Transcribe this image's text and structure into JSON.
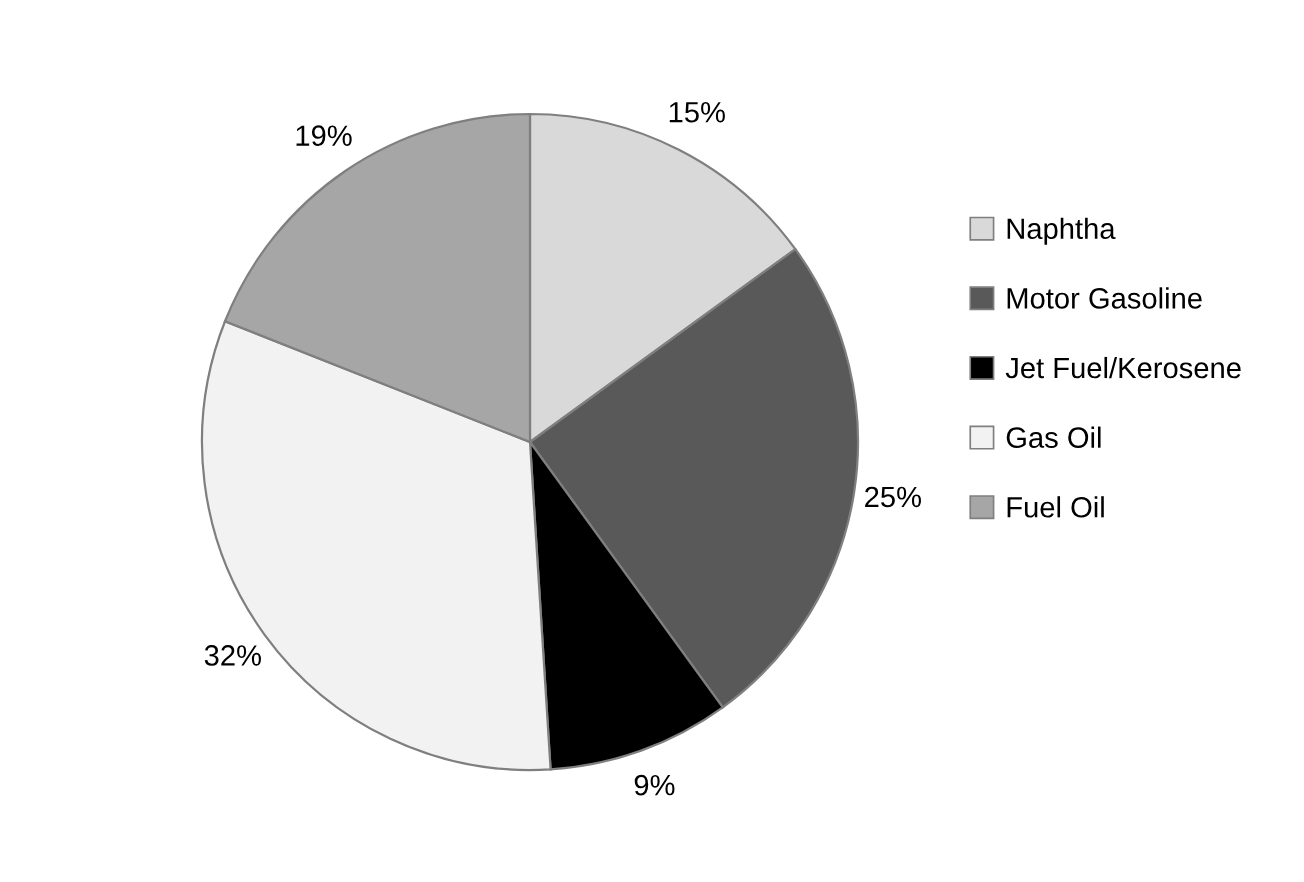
{
  "chart_data": {
    "type": "pie",
    "categories": [
      "Naphtha",
      "Motor Gasoline",
      "Jet Fuel/Kerosene",
      "Gas Oil",
      "Fuel Oil"
    ],
    "values": [
      15,
      25,
      9,
      32,
      19
    ],
    "colors": [
      "#d9d9d9",
      "#595959",
      "#000000",
      "#f2f2f2",
      "#a6a6a6"
    ],
    "value_labels": [
      "15%",
      "25%",
      "9%",
      "32%",
      "19%"
    ],
    "legend": "right"
  }
}
